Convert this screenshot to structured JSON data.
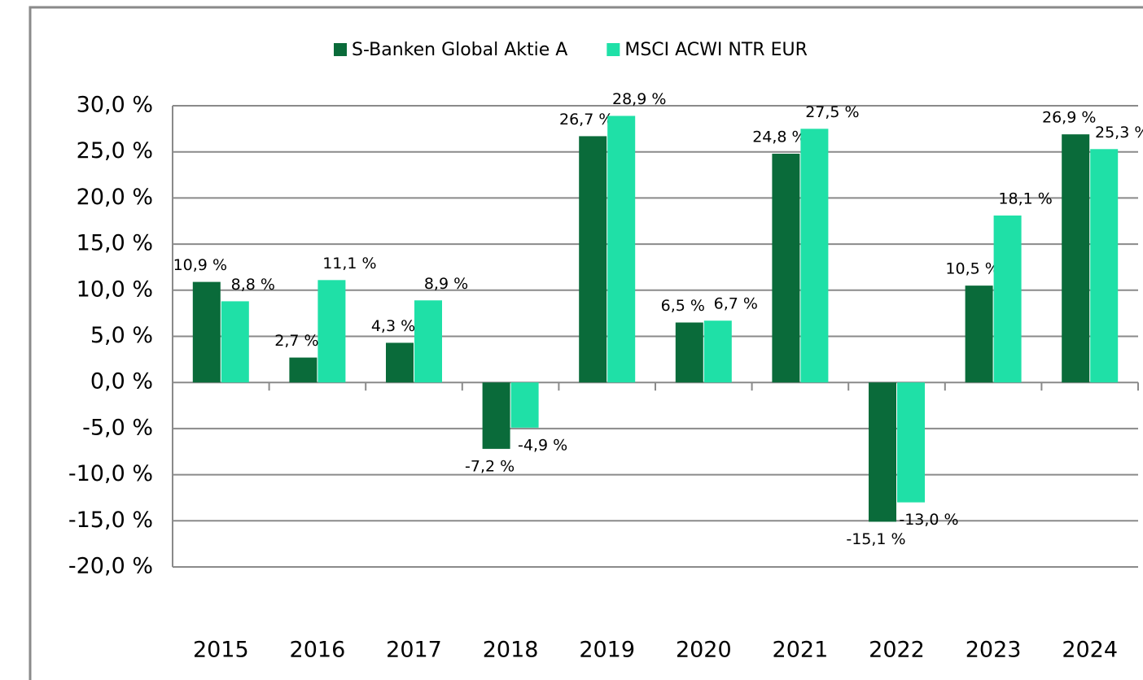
{
  "chart_data": {
    "type": "bar",
    "categories": [
      "2015",
      "2016",
      "2017",
      "2018",
      "2019",
      "2020",
      "2021",
      "2022",
      "2023",
      "2024"
    ],
    "series": [
      {
        "name": "S-Banken Global Aktie A",
        "color": "#0a6b3a",
        "values": [
          10.9,
          2.7,
          4.3,
          -7.2,
          26.7,
          6.5,
          24.8,
          -15.1,
          10.5,
          26.9
        ],
        "value_labels": [
          "10,9 %",
          "2,7 %",
          "4,3 %",
          "-7,2 %",
          "26,7 %",
          "6,5 %",
          "24,8 %",
          "-15,1 %",
          "10,5 %",
          "26,9 %"
        ]
      },
      {
        "name": "MSCI ACWI NTR EUR",
        "color": "#1fe0a7",
        "values": [
          8.8,
          11.1,
          8.9,
          -4.9,
          28.9,
          6.7,
          27.5,
          -13.0,
          18.1,
          25.3
        ],
        "value_labels": [
          "8,8 %",
          "11,1 %",
          "8,9 %",
          "-4,9 %",
          "28,9 %",
          "6,7 %",
          "27,5 %",
          "-13,0 %",
          "18,1 %",
          "25,3 %"
        ]
      }
    ],
    "ylim": [
      -20,
      30
    ],
    "yticks": [
      {
        "value": 30,
        "label": "30,0 %"
      },
      {
        "value": 25,
        "label": "25,0 %"
      },
      {
        "value": 20,
        "label": "20,0 %"
      },
      {
        "value": 15,
        "label": "15,0 %"
      },
      {
        "value": 10,
        "label": "10,0 %"
      },
      {
        "value": 5,
        "label": "5,0 %"
      },
      {
        "value": 0,
        "label": "0,0 %"
      },
      {
        "value": -5,
        "label": "-5,0 %"
      },
      {
        "value": -10,
        "label": "-10,0 %"
      },
      {
        "value": -15,
        "label": "-15,0 %"
      },
      {
        "value": -20,
        "label": "-20,0 %"
      }
    ],
    "grid": true,
    "legend": "top"
  }
}
